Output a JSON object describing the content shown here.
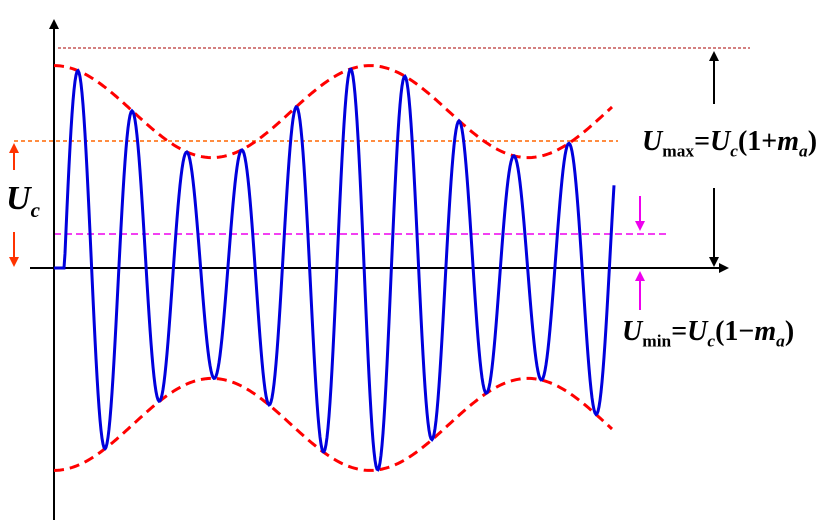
{
  "labels": {
    "uc_main": "U",
    "uc_sub": "c",
    "umax_formula": {
      "U": "U",
      "sub": "max",
      "eq": "=",
      "Uc": "U",
      "c": "c",
      "open": "(1+",
      "m": "m",
      "a": "a",
      "close": ")"
    },
    "umin_formula": {
      "U": "U",
      "sub": "min",
      "eq": "=",
      "Uc": "U",
      "c": "c",
      "open": "(1−",
      "m": "m",
      "a": "a",
      "close": ")"
    }
  },
  "colors": {
    "carrier": "#0000dd",
    "envelope": "#ff0000",
    "max_guide": "#ff6600",
    "min_guide": "#ee00ee",
    "top_guide": "#aa0000",
    "uc_arrow": "#ff3300",
    "axis": "#000000"
  },
  "signal": {
    "type": "amplitude-modulated wave",
    "carrier_peaks": 10,
    "modulation_cycles": 2
  }
}
